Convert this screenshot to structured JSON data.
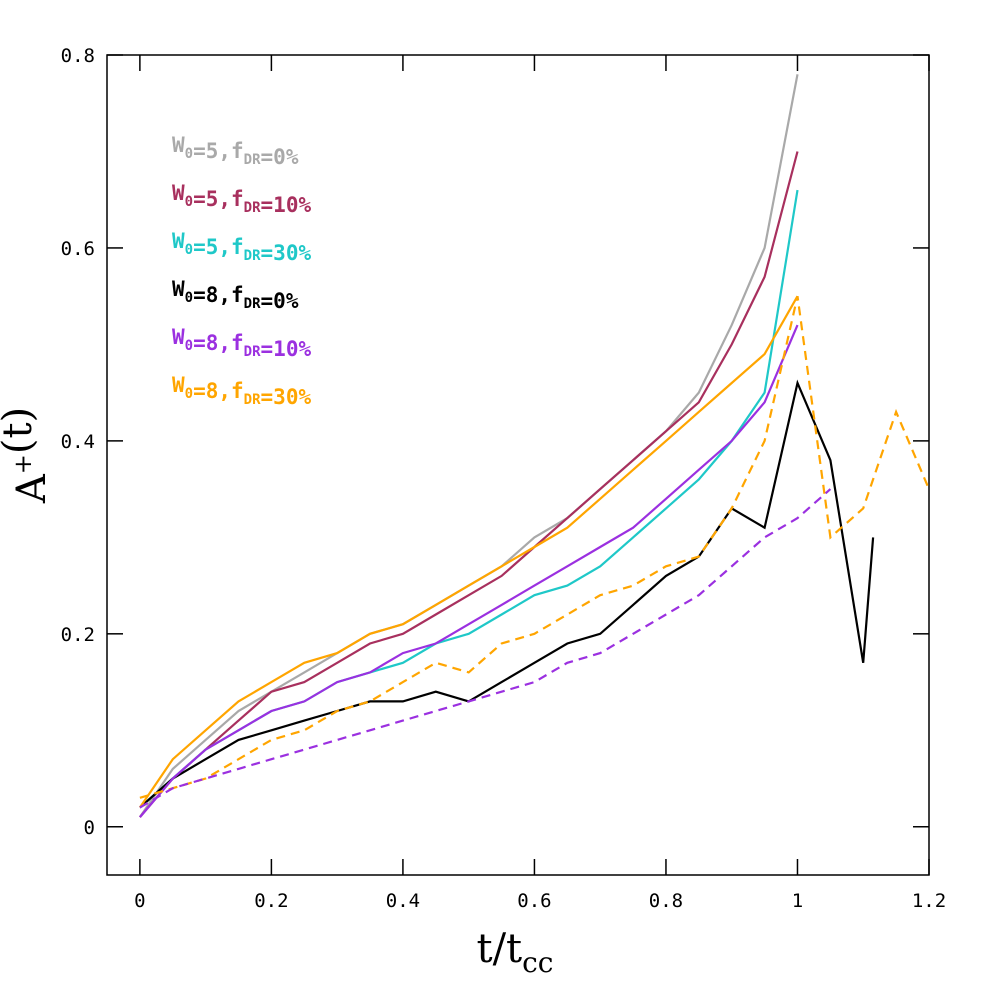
{
  "chart_data": {
    "type": "line",
    "xlabel": "t/tcc",
    "ylabel": "A+(t)",
    "xlim": [
      -0.05,
      1.2
    ],
    "ylim": [
      -0.05,
      0.8
    ],
    "xticks": [
      0,
      0.2,
      0.4,
      0.6,
      0.8,
      1,
      1.2
    ],
    "yticks": [
      0,
      0.2,
      0.4,
      0.6,
      0.8
    ],
    "legend": "upper left",
    "series": [
      {
        "name": "W0=5,fDR=0%",
        "color": "#a9a9a9",
        "x": [
          0,
          0.05,
          0.1,
          0.15,
          0.2,
          0.25,
          0.3,
          0.35,
          0.4,
          0.45,
          0.5,
          0.55,
          0.6,
          0.65,
          0.7,
          0.75,
          0.8,
          0.85,
          0.9,
          0.95,
          1.0
        ],
        "values": [
          0.01,
          0.06,
          0.09,
          0.12,
          0.14,
          0.16,
          0.18,
          0.2,
          0.21,
          0.23,
          0.25,
          0.27,
          0.3,
          0.32,
          0.35,
          0.38,
          0.41,
          0.45,
          0.52,
          0.6,
          0.78
        ]
      },
      {
        "name": "W0=5,fDR=10%",
        "color": "#a8305e",
        "x": [
          0,
          0.05,
          0.1,
          0.15,
          0.2,
          0.25,
          0.3,
          0.35,
          0.4,
          0.45,
          0.5,
          0.55,
          0.6,
          0.65,
          0.7,
          0.75,
          0.8,
          0.85,
          0.9,
          0.95,
          1.0
        ],
        "values": [
          0.01,
          0.05,
          0.08,
          0.11,
          0.14,
          0.15,
          0.17,
          0.19,
          0.2,
          0.22,
          0.24,
          0.26,
          0.29,
          0.32,
          0.35,
          0.38,
          0.41,
          0.44,
          0.5,
          0.57,
          0.7
        ]
      },
      {
        "name": "W0=5,fDR=30%",
        "color": "#1fc8c8",
        "x": [
          0,
          0.05,
          0.1,
          0.15,
          0.2,
          0.25,
          0.3,
          0.35,
          0.4,
          0.45,
          0.5,
          0.55,
          0.6,
          0.65,
          0.7,
          0.75,
          0.8,
          0.85,
          0.9,
          0.95,
          1.0
        ],
        "values": [
          0.02,
          0.05,
          0.08,
          0.1,
          0.12,
          0.13,
          0.15,
          0.16,
          0.17,
          0.19,
          0.2,
          0.22,
          0.24,
          0.25,
          0.27,
          0.3,
          0.33,
          0.36,
          0.4,
          0.45,
          0.66
        ]
      },
      {
        "name": "W0=8,fDR=0%",
        "color": "#000000",
        "x": [
          0,
          0.05,
          0.1,
          0.15,
          0.2,
          0.25,
          0.3,
          0.35,
          0.4,
          0.45,
          0.5,
          0.55,
          0.6,
          0.65,
          0.7,
          0.75,
          0.8,
          0.85,
          0.9,
          0.95,
          1.0,
          1.05,
          1.1,
          1.115
        ],
        "values": [
          0.02,
          0.05,
          0.07,
          0.09,
          0.1,
          0.11,
          0.12,
          0.13,
          0.13,
          0.14,
          0.13,
          0.15,
          0.17,
          0.19,
          0.2,
          0.23,
          0.26,
          0.28,
          0.33,
          0.31,
          0.46,
          0.38,
          0.17,
          0.3
        ]
      },
      {
        "name": "W0=8,fDR=10%",
        "color": "#9b30e0",
        "x": [
          0,
          0.05,
          0.1,
          0.15,
          0.2,
          0.25,
          0.3,
          0.35,
          0.4,
          0.45,
          0.5,
          0.55,
          0.6,
          0.65,
          0.7,
          0.75,
          0.8,
          0.85,
          0.9,
          0.95,
          1.0
        ],
        "values": [
          0.01,
          0.05,
          0.08,
          0.1,
          0.12,
          0.13,
          0.15,
          0.16,
          0.18,
          0.19,
          0.21,
          0.23,
          0.25,
          0.27,
          0.29,
          0.31,
          0.34,
          0.37,
          0.4,
          0.44,
          0.52
        ]
      },
      {
        "name": "W0=8,fDR=30%",
        "color": "#ffa500",
        "x": [
          0,
          0.05,
          0.1,
          0.15,
          0.2,
          0.25,
          0.3,
          0.35,
          0.4,
          0.45,
          0.5,
          0.55,
          0.6,
          0.65,
          0.7,
          0.75,
          0.8,
          0.85,
          0.9,
          0.95,
          1.0
        ],
        "values": [
          0.02,
          0.07,
          0.1,
          0.13,
          0.15,
          0.17,
          0.18,
          0.2,
          0.21,
          0.23,
          0.25,
          0.27,
          0.29,
          0.31,
          0.34,
          0.37,
          0.4,
          0.43,
          0.46,
          0.49,
          0.55
        ]
      },
      {
        "color": "#ffa500",
        "dashed": true,
        "x": [
          0,
          0.05,
          0.1,
          0.15,
          0.2,
          0.25,
          0.3,
          0.35,
          0.4,
          0.45,
          0.5,
          0.55,
          0.6,
          0.65,
          0.7,
          0.75,
          0.8,
          0.85,
          0.9,
          0.95,
          1.0,
          1.05,
          1.1,
          1.15,
          1.2
        ],
        "values": [
          0.03,
          0.04,
          0.05,
          0.07,
          0.09,
          0.1,
          0.12,
          0.13,
          0.15,
          0.17,
          0.16,
          0.19,
          0.2,
          0.22,
          0.24,
          0.25,
          0.27,
          0.28,
          0.33,
          0.4,
          0.55,
          0.3,
          0.33,
          0.43,
          0.35
        ]
      },
      {
        "color": "#9b30e0",
        "dashed": true,
        "x": [
          0,
          0.05,
          0.1,
          0.15,
          0.2,
          0.25,
          0.3,
          0.35,
          0.4,
          0.45,
          0.5,
          0.55,
          0.6,
          0.65,
          0.7,
          0.75,
          0.8,
          0.85,
          0.9,
          0.95,
          1.0,
          1.05
        ],
        "values": [
          0.02,
          0.04,
          0.05,
          0.06,
          0.07,
          0.08,
          0.09,
          0.1,
          0.11,
          0.12,
          0.13,
          0.14,
          0.15,
          0.17,
          0.18,
          0.2,
          0.22,
          0.24,
          0.27,
          0.3,
          0.32,
          0.35
        ]
      }
    ]
  }
}
